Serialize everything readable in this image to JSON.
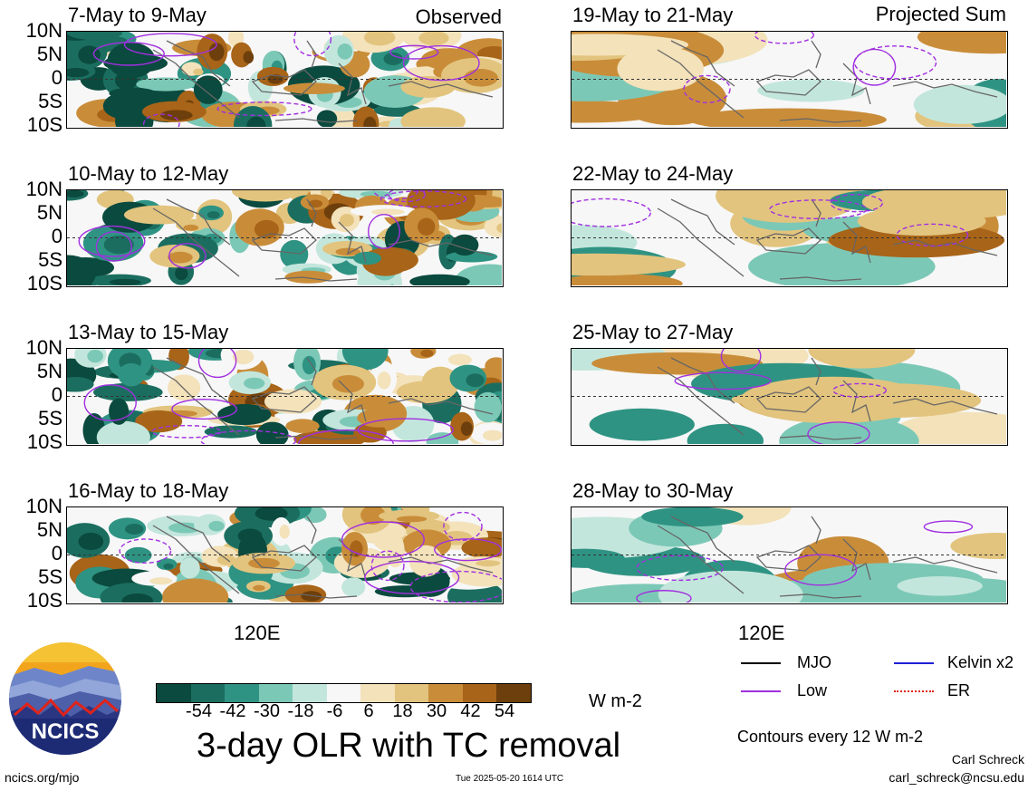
{
  "columns": {
    "left_label": "Observed",
    "right_label": "Projected Sum"
  },
  "panels_left": [
    {
      "title": "7-May to 9-May"
    },
    {
      "title": "10-May to 12-May"
    },
    {
      "title": "13-May to 15-May"
    },
    {
      "title": "16-May to 18-May"
    }
  ],
  "panels_right": [
    {
      "title": "19-May to 21-May"
    },
    {
      "title": "22-May to 24-May"
    },
    {
      "title": "25-May to 27-May"
    },
    {
      "title": "28-May to 30-May"
    }
  ],
  "lat_labels": [
    "10N",
    "5N",
    "0",
    "5S",
    "10S"
  ],
  "lon_label": "120E",
  "colorbar": {
    "ticks": [
      "-54",
      "-42",
      "-30",
      "-18",
      "-6",
      "6",
      "18",
      "30",
      "42",
      "54"
    ],
    "colors": [
      "#0b4a3e",
      "#1b6e5f",
      "#2f9383",
      "#7cc8b6",
      "#c3e6dc",
      "#f7f7f7",
      "#f3e2ba",
      "#e2c47e",
      "#c98d3a",
      "#a86418",
      "#6d3f0c"
    ],
    "units": "W m-2"
  },
  "chart_data": [
    {
      "type": "heatmap",
      "title": "3-day OLR with TC removal",
      "units": "W m-2",
      "panels": [
        "7-May to 9-May",
        "10-May to 12-May",
        "13-May to 15-May",
        "16-May to 18-May",
        "19-May to 21-May",
        "22-May to 24-May",
        "25-May to 27-May",
        "28-May to 30-May"
      ],
      "y_ticks": [
        "10N",
        "5N",
        "0",
        "5S",
        "10S"
      ],
      "x_ticks": [
        "120E"
      ],
      "levels": [
        -54,
        -42,
        -30,
        -18,
        -6,
        6,
        18,
        30,
        42,
        54
      ],
      "contour_interval": 12,
      "contour_series": [
        "MJO",
        "Low",
        "Kelvin x2",
        "ER"
      ]
    }
  ],
  "legend": {
    "items": [
      {
        "label": "MJO",
        "color": "#000000",
        "style": "solid"
      },
      {
        "label": "Kelvin x2",
        "color": "#1f1fd6",
        "style": "solid"
      },
      {
        "label": "Low",
        "color": "#a12fe0",
        "style": "solid"
      },
      {
        "label": "ER",
        "color": "#e0231a",
        "style": "dotted"
      }
    ],
    "contours_note": "Contours every 12 W m-2"
  },
  "footer": {
    "main_title": "3-day OLR with TC removal",
    "url": "ncics.org/mjo",
    "timestamp": "Tue 2025-05-20 1614 UTC",
    "author": "Carl Schreck",
    "email": "carl_schreck@ncsu.edu",
    "logo_text": "NCICS"
  }
}
